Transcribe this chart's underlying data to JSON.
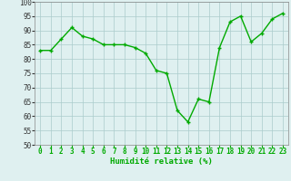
{
  "x": [
    0,
    1,
    2,
    3,
    4,
    5,
    6,
    7,
    8,
    9,
    10,
    11,
    12,
    13,
    14,
    15,
    16,
    17,
    18,
    19,
    20,
    21,
    22,
    23
  ],
  "y": [
    83,
    83,
    87,
    91,
    88,
    87,
    85,
    85,
    85,
    84,
    82,
    76,
    75,
    62,
    58,
    66,
    65,
    84,
    93,
    95,
    86,
    89,
    94,
    96
  ],
  "line_color": "#00aa00",
  "marker": "+",
  "bg_color": "#dff0f0",
  "grid_color": "#aacccc",
  "xlabel": "Humidité relative (%)",
  "xlabel_color": "#00aa00",
  "ylim": [
    50,
    100
  ],
  "yticks": [
    50,
    55,
    60,
    65,
    70,
    75,
    80,
    85,
    90,
    95,
    100
  ],
  "xticks": [
    0,
    1,
    2,
    3,
    4,
    5,
    6,
    7,
    8,
    9,
    10,
    11,
    12,
    13,
    14,
    15,
    16,
    17,
    18,
    19,
    20,
    21,
    22,
    23
  ],
  "tick_label_fontsize": 5.5,
  "xlabel_fontsize": 6.5,
  "linewidth": 1.0,
  "marker_size": 3.5,
  "marker_edge_width": 1.0
}
